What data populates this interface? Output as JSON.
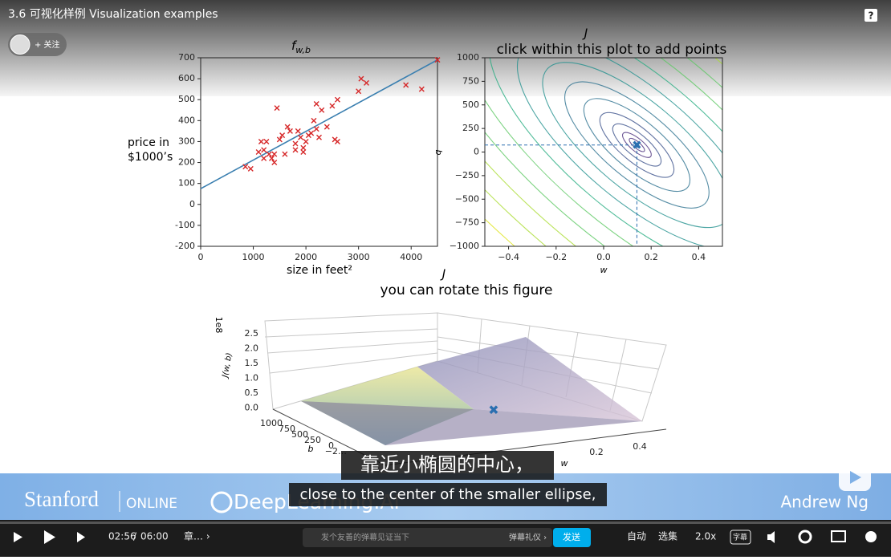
{
  "header": {
    "title": "3.6 可视化样例 Visualization examples",
    "follow": "+ 关注",
    "help": "?"
  },
  "chart_data": [
    {
      "type": "scatter",
      "title": "f",
      "title_sub": "w,b",
      "xlabel": "size in feet²",
      "ylabel": [
        "price in",
        "$1000’s"
      ],
      "x": [
        850,
        950,
        1100,
        1150,
        1200,
        1200,
        1250,
        1300,
        1350,
        1400,
        1400,
        1450,
        1500,
        1550,
        1600,
        1650,
        1700,
        1800,
        1800,
        1850,
        1900,
        1950,
        1950,
        2000,
        2050,
        2100,
        2150,
        2200,
        2200,
        2250,
        2300,
        2400,
        2500,
        2550,
        2600,
        2600,
        3000,
        3050,
        3150,
        3900,
        4200,
        4500
      ],
      "values": [
        180,
        170,
        250,
        300,
        220,
        260,
        300,
        240,
        220,
        200,
        240,
        460,
        310,
        330,
        240,
        370,
        350,
        260,
        290,
        350,
        320,
        250,
        270,
        300,
        330,
        340,
        400,
        360,
        480,
        320,
        450,
        370,
        470,
        310,
        500,
        300,
        540,
        600,
        580,
        570,
        550,
        690
      ],
      "color": "#d62728",
      "fit": {
        "x": [
          0,
          4500
        ],
        "values": [
          75,
          690
        ],
        "color": "#3a7fb0"
      },
      "xlim": [
        0,
        4500
      ],
      "xticks": [
        0,
        1000,
        2000,
        3000,
        4000
      ],
      "ylim": [
        -200,
        700
      ],
      "yticks": [
        -200,
        -100,
        0,
        100,
        200,
        300,
        400,
        500,
        600,
        700
      ]
    },
    {
      "type": "contour",
      "title": "J",
      "subtitle": "click within this plot to add points",
      "xlabel": "w",
      "ylabel": "b",
      "xlim": [
        -0.5,
        0.5
      ],
      "xticks": [
        {
          "value": -0.4,
          "label": "−0.4"
        },
        {
          "value": -0.2,
          "label": "−0.2"
        },
        {
          "value": 0,
          "label": "0.0"
        },
        0.2,
        0.4
      ],
      "ylim": [
        -1000,
        1000
      ],
      "yticks": [
        {
          "value": -1000,
          "label": "−1000"
        },
        {
          "value": -750,
          "label": "−750"
        },
        {
          "value": -500,
          "label": "−500"
        },
        {
          "value": -250,
          "label": "−250"
        },
        0,
        250,
        500,
        750,
        1000
      ],
      "point": {
        "x": 0.14,
        "y": 75
      },
      "color": "#2a6fb0"
    }
  ],
  "plot3d": {
    "title": "J",
    "subtitle": "you can rotate this figure",
    "scale": "1e8",
    "zlabel": "J(w, b)",
    "zticks": [
      "2.5",
      "2.0",
      "1.5",
      "1.0",
      "0.5",
      "0.0"
    ],
    "yticks": [
      "1000",
      "750",
      "500",
      "250",
      "0",
      "−2…"
    ],
    "ylabel": "b",
    "xticks": [
      "0.2",
      "0.4"
    ],
    "xlabel": "w"
  },
  "subtitles": {
    "zh": "靠近小椭圆的中心，",
    "en": "close to the center of the smaller ellipse,"
  },
  "banner": {
    "school": "Stanford",
    "online": "ONLINE",
    "partner": "DeepLearning.AI",
    "teacher": "Andrew Ng"
  },
  "controls": {
    "current": "02:56",
    "sep": "/",
    "total": "06:00",
    "chapter": "章… ›",
    "danmaku_placeholder": "发个友善的弹幕见证当下",
    "etiquette": "弹幕礼仪 ›",
    "send": "发送",
    "auto": "自动",
    "episodes": "选集",
    "speed": "2.0x",
    "caption": "字幕"
  }
}
